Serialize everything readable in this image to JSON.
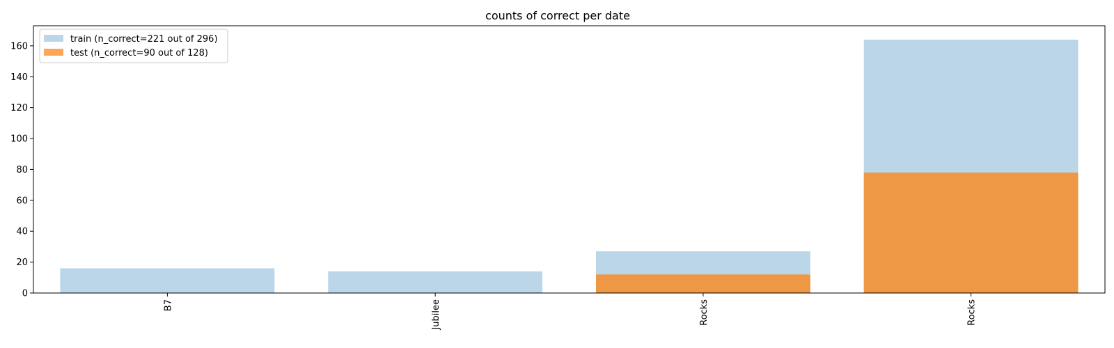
{
  "chart_data": {
    "type": "bar",
    "title": "counts of correct per date",
    "xlabel": "",
    "ylabel": "",
    "categories": [
      "B7",
      "Jubilee",
      "Rocks",
      "Rocks"
    ],
    "ylim": [
      0,
      173
    ],
    "yticks": [
      0,
      20,
      40,
      60,
      80,
      100,
      120,
      140,
      160
    ],
    "series": [
      {
        "name": "train (n_correct=221 out of 296)",
        "values": [
          16,
          14,
          27,
          164
        ],
        "color": "#bad6e8"
      },
      {
        "name": "test (n_correct=90 out of 128)",
        "values": [
          0,
          0,
          12,
          78
        ],
        "color": "#ee9744"
      }
    ],
    "legend_position": "top-left",
    "legend_swatches": [
      "#bad6e8",
      "#ffa656"
    ],
    "grid": false
  }
}
